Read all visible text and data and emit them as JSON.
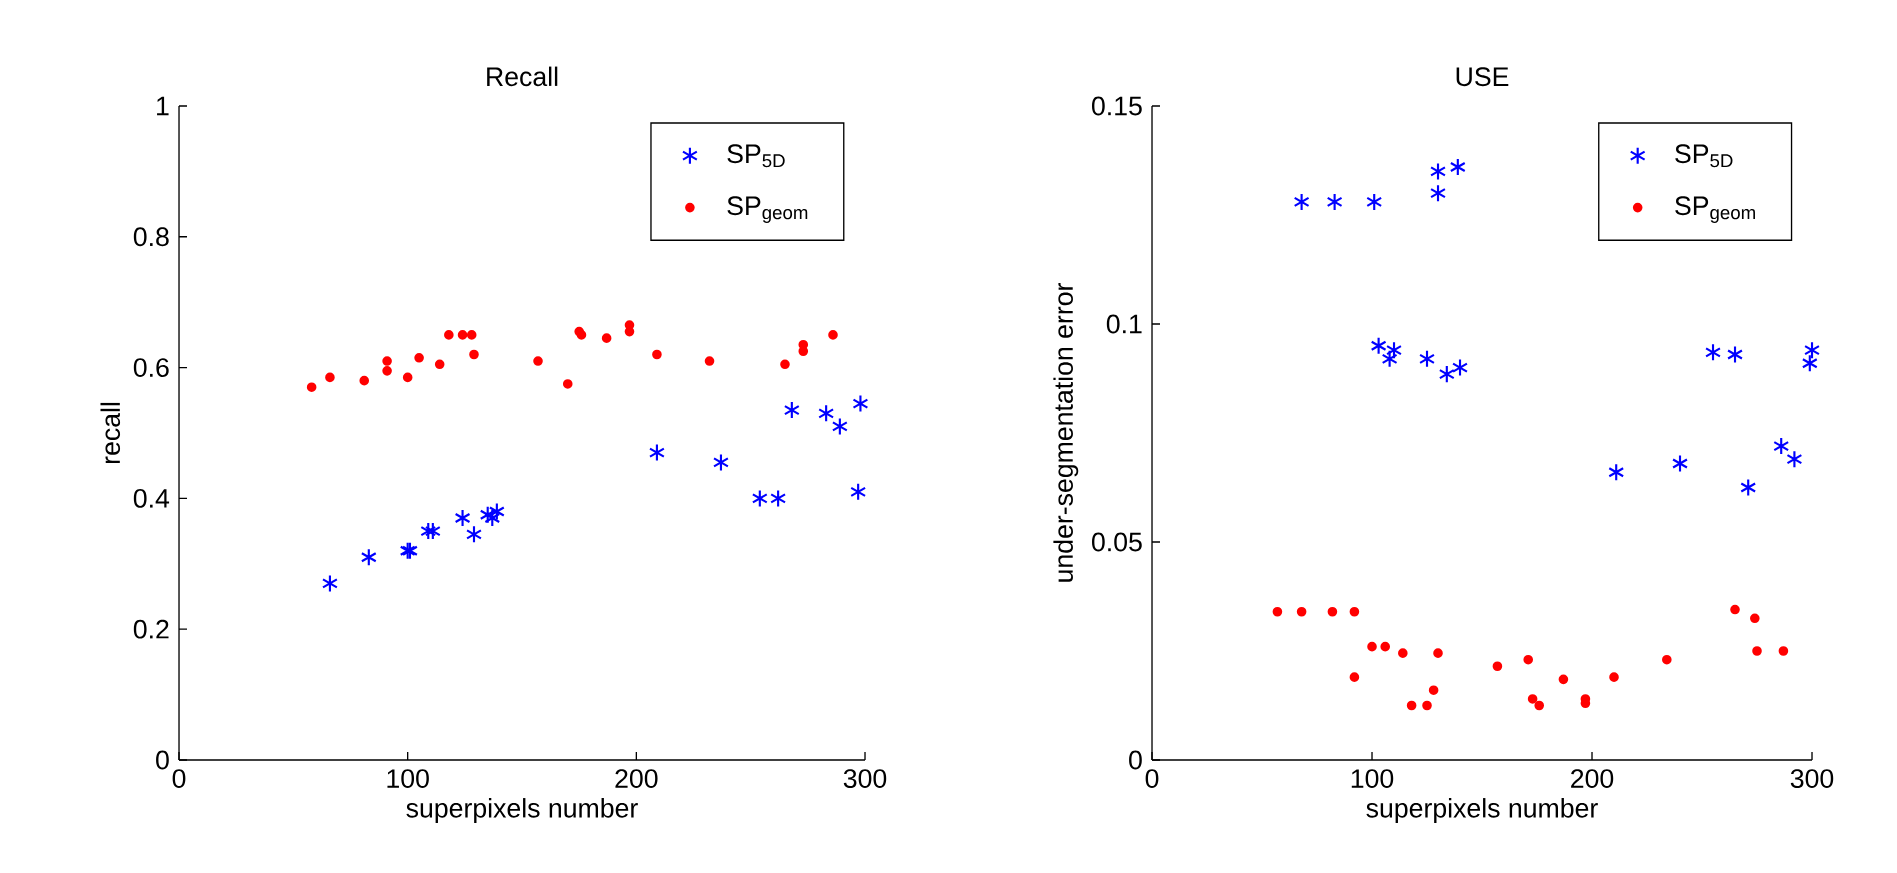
{
  "chart_data": [
    {
      "type": "scatter",
      "title": "Recall",
      "xlabel": "superpixels number",
      "ylabel": "recall",
      "xlim": [
        0,
        300
      ],
      "xticks": [
        0,
        100,
        200,
        300
      ],
      "ylim": [
        0,
        1
      ],
      "yticks": [
        0,
        0.2,
        0.4,
        0.6,
        0.8,
        1
      ],
      "legend": "top right",
      "grid": false,
      "series": [
        {
          "name": "SP$_{5D}$",
          "color": "#0000ff",
          "marker": "cross",
          "x": [
            66,
            83,
            100,
            101,
            109,
            111,
            124,
            129,
            135,
            137,
            139,
            209,
            237,
            254,
            262,
            268,
            283,
            289,
            297,
            298
          ],
          "values": [
            0.27,
            0.31,
            0.32,
            0.32,
            0.35,
            0.35,
            0.37,
            0.345,
            0.375,
            0.37,
            0.38,
            0.47,
            0.455,
            0.4,
            0.4,
            0.535,
            0.53,
            0.51,
            0.41,
            0.545
          ]
        },
        {
          "name": "SP$_{geom}$",
          "color": "#ff0000",
          "marker": "circle",
          "x": [
            58,
            66,
            81,
            91,
            91,
            100,
            105,
            114,
            118,
            124,
            128,
            129,
            157,
            170,
            175,
            176,
            187,
            197,
            197,
            209,
            232,
            265,
            273,
            273,
            286
          ],
          "values": [
            0.57,
            0.585,
            0.58,
            0.61,
            0.595,
            0.585,
            0.615,
            0.605,
            0.65,
            0.65,
            0.65,
            0.62,
            0.61,
            0.575,
            0.655,
            0.65,
            0.645,
            0.665,
            0.655,
            0.62,
            0.61,
            0.605,
            0.635,
            0.625,
            0.65
          ]
        }
      ]
    },
    {
      "type": "scatter",
      "title": "USE",
      "xlabel": "superpixels number",
      "ylabel": "under-segmentation error",
      "xlim": [
        0,
        300
      ],
      "xticks": [
        0,
        100,
        200,
        300
      ],
      "ylim": [
        0,
        0.15
      ],
      "yticks": [
        0,
        0.05,
        0.1,
        0.15
      ],
      "legend": "top right",
      "grid": false,
      "series": [
        {
          "name": "SP$_{5D}$",
          "color": "#0000ff",
          "marker": "cross",
          "x": [
            68,
            83,
            101,
            130,
            130,
            139,
            103,
            110,
            108,
            125,
            134,
            140,
            255,
            265,
            300,
            299,
            211,
            240,
            271,
            286,
            292
          ],
          "values": [
            0.128,
            0.128,
            0.128,
            0.135,
            0.13,
            0.136,
            0.095,
            0.094,
            0.092,
            0.092,
            0.0885,
            0.09,
            0.0935,
            0.093,
            0.094,
            0.091,
            0.066,
            0.068,
            0.0625,
            0.072,
            0.069
          ]
        },
        {
          "name": "SP$_{geom}$",
          "color": "#ff0000",
          "marker": "circle",
          "x": [
            57,
            68,
            82,
            92,
            92,
            100,
            106,
            114,
            130,
            128,
            118,
            125,
            157,
            171,
            173,
            176,
            187,
            197,
            197,
            210,
            234,
            265,
            274,
            275,
            287
          ],
          "values": [
            0.034,
            0.034,
            0.034,
            0.034,
            0.019,
            0.026,
            0.026,
            0.0245,
            0.0245,
            0.016,
            0.0125,
            0.0125,
            0.0215,
            0.023,
            0.014,
            0.0125,
            0.0185,
            0.014,
            0.013,
            0.019,
            0.023,
            0.0345,
            0.0325,
            0.025,
            0.025
          ]
        }
      ]
    }
  ]
}
